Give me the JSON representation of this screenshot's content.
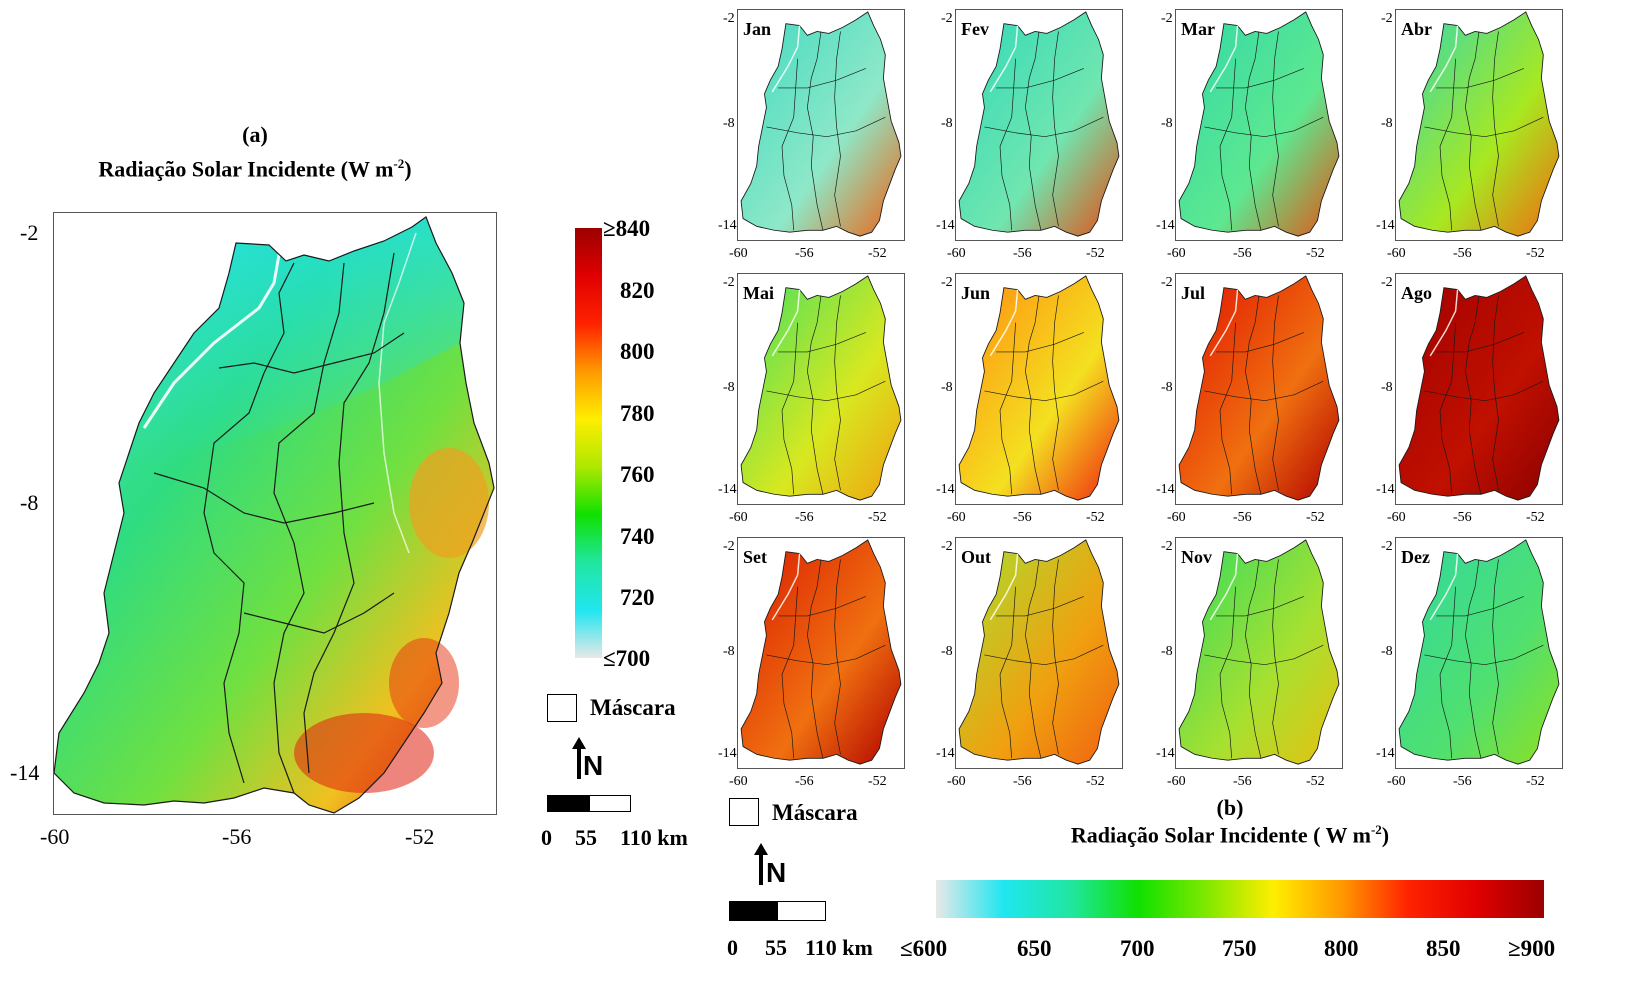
{
  "panel_a": {
    "label": "(a)",
    "title": "Radiação Solar Incidente (W m",
    "title_sup": "-2",
    "title_end": ")",
    "y_ticks": [
      "-2",
      "-8",
      "-14"
    ],
    "x_ticks": [
      "-60",
      "-56",
      "-52"
    ],
    "colorbar": {
      "labels": [
        "≥840",
        "820",
        "800",
        "780",
        "760",
        "740",
        "720",
        "≤700"
      ],
      "stops": [
        "#9b0000",
        "#e00000",
        "#ff2200",
        "#ff9900",
        "#ffee00",
        "#aee800",
        "#10e000",
        "#20e6a0",
        "#20e6f0",
        "#e8e8e8"
      ]
    },
    "mask_label": "Máscara",
    "north_label": "N",
    "scale_labels": [
      "0",
      "55",
      "110 km"
    ]
  },
  "panel_b": {
    "label": "(b)",
    "title": "Radiação Solar Incidente ( W m",
    "title_sup": "-2",
    "title_end": ")",
    "months": [
      {
        "name": "Jan",
        "fill": "#3fd9c0",
        "fill2": "#8ee8c8",
        "hot": "#f06010"
      },
      {
        "name": "Fev",
        "fill": "#2fd8b8",
        "fill2": "#70e6b0",
        "hot": "#e84a10"
      },
      {
        "name": "Mar",
        "fill": "#30d8a8",
        "fill2": "#5de890",
        "hot": "#e85010"
      },
      {
        "name": "Abr",
        "fill": "#30d8b8",
        "fill2": "#a8e820",
        "hot": "#f06a10"
      },
      {
        "name": "Mai",
        "fill": "#40e060",
        "fill2": "#d8e820",
        "hot": "#f0a010"
      },
      {
        "name": "Jun",
        "fill": "#ff8a10",
        "fill2": "#f4e020",
        "hot": "#f02010"
      },
      {
        "name": "Jul",
        "fill": "#e01000",
        "fill2": "#f07010",
        "hot": "#b00000"
      },
      {
        "name": "Ago",
        "fill": "#a00000",
        "fill2": "#c01000",
        "hot": "#8a0000"
      },
      {
        "name": "Set",
        "fill": "#d81800",
        "fill2": "#f07010",
        "hot": "#b00000"
      },
      {
        "name": "Out",
        "fill": "#a8e030",
        "fill2": "#f0a010",
        "hot": "#f06010"
      },
      {
        "name": "Nov",
        "fill": "#30dc60",
        "fill2": "#a8e030",
        "hot": "#e8c010"
      },
      {
        "name": "Dez",
        "fill": "#30d8a0",
        "fill2": "#50e070",
        "hot": "#90e020"
      }
    ],
    "small_y_ticks": [
      "-2",
      "-8",
      "-14"
    ],
    "small_x_ticks": [
      "-60",
      "-56",
      "-52"
    ],
    "colorbar": {
      "labels": [
        "≤600",
        "650",
        "700",
        "750",
        "800",
        "850",
        "≥900"
      ],
      "stops": [
        "#e8e8e8",
        "#20e6f0",
        "#20e6a0",
        "#10e000",
        "#80e800",
        "#ffee00",
        "#ff9900",
        "#ff2200",
        "#e00000",
        "#9b0000"
      ]
    },
    "mask_label": "Máscara",
    "north_label": "N",
    "scale_labels": [
      "0",
      "55",
      "110 km"
    ]
  }
}
